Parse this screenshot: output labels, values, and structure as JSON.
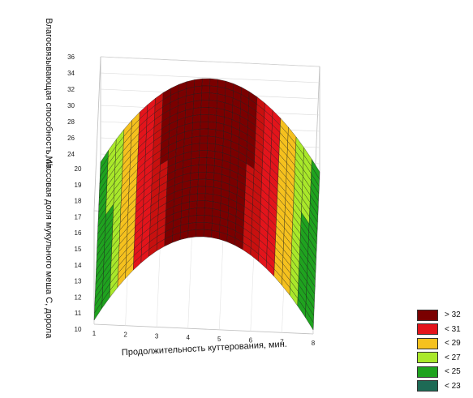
{
  "chart_data": {
    "type": "surface3d",
    "x_axis": {
      "label": "Продолжительность куттерования, мин.",
      "range": [
        1,
        8
      ],
      "ticks": [
        "1",
        "2",
        "3",
        "4",
        "5",
        "6",
        "7",
        "8"
      ]
    },
    "y_axis": {
      "label": "Массовая доля мукульного меша С, дорола",
      "range": [
        10,
        20
      ],
      "ticks": [
        "10",
        "11",
        "12",
        "13",
        "14",
        "15",
        "16",
        "17",
        "18",
        "19",
        "20"
      ]
    },
    "z_axis": {
      "label": "Влагосвязывающая способность, г/г",
      "range": [
        22,
        36
      ],
      "ticks": [
        "24",
        "26",
        "28",
        "30",
        "32",
        "34",
        "36"
      ]
    },
    "surface_peak": {
      "x": 4.5,
      "z": 33.4
    },
    "surface_edge_min": 22.5,
    "legend_placement": "bottom-right",
    "legend": [
      {
        "label": "> 32",
        "color": "#7a0000"
      },
      {
        "label": "< 31",
        "color": "#e3141b"
      },
      {
        "label": "< 29",
        "color": "#f5c11e"
      },
      {
        "label": "< 27",
        "color": "#a9e82a"
      },
      {
        "label": "< 25",
        "color": "#1fa31f"
      },
      {
        "label": "< 23",
        "color": "#1d6a55"
      }
    ]
  }
}
